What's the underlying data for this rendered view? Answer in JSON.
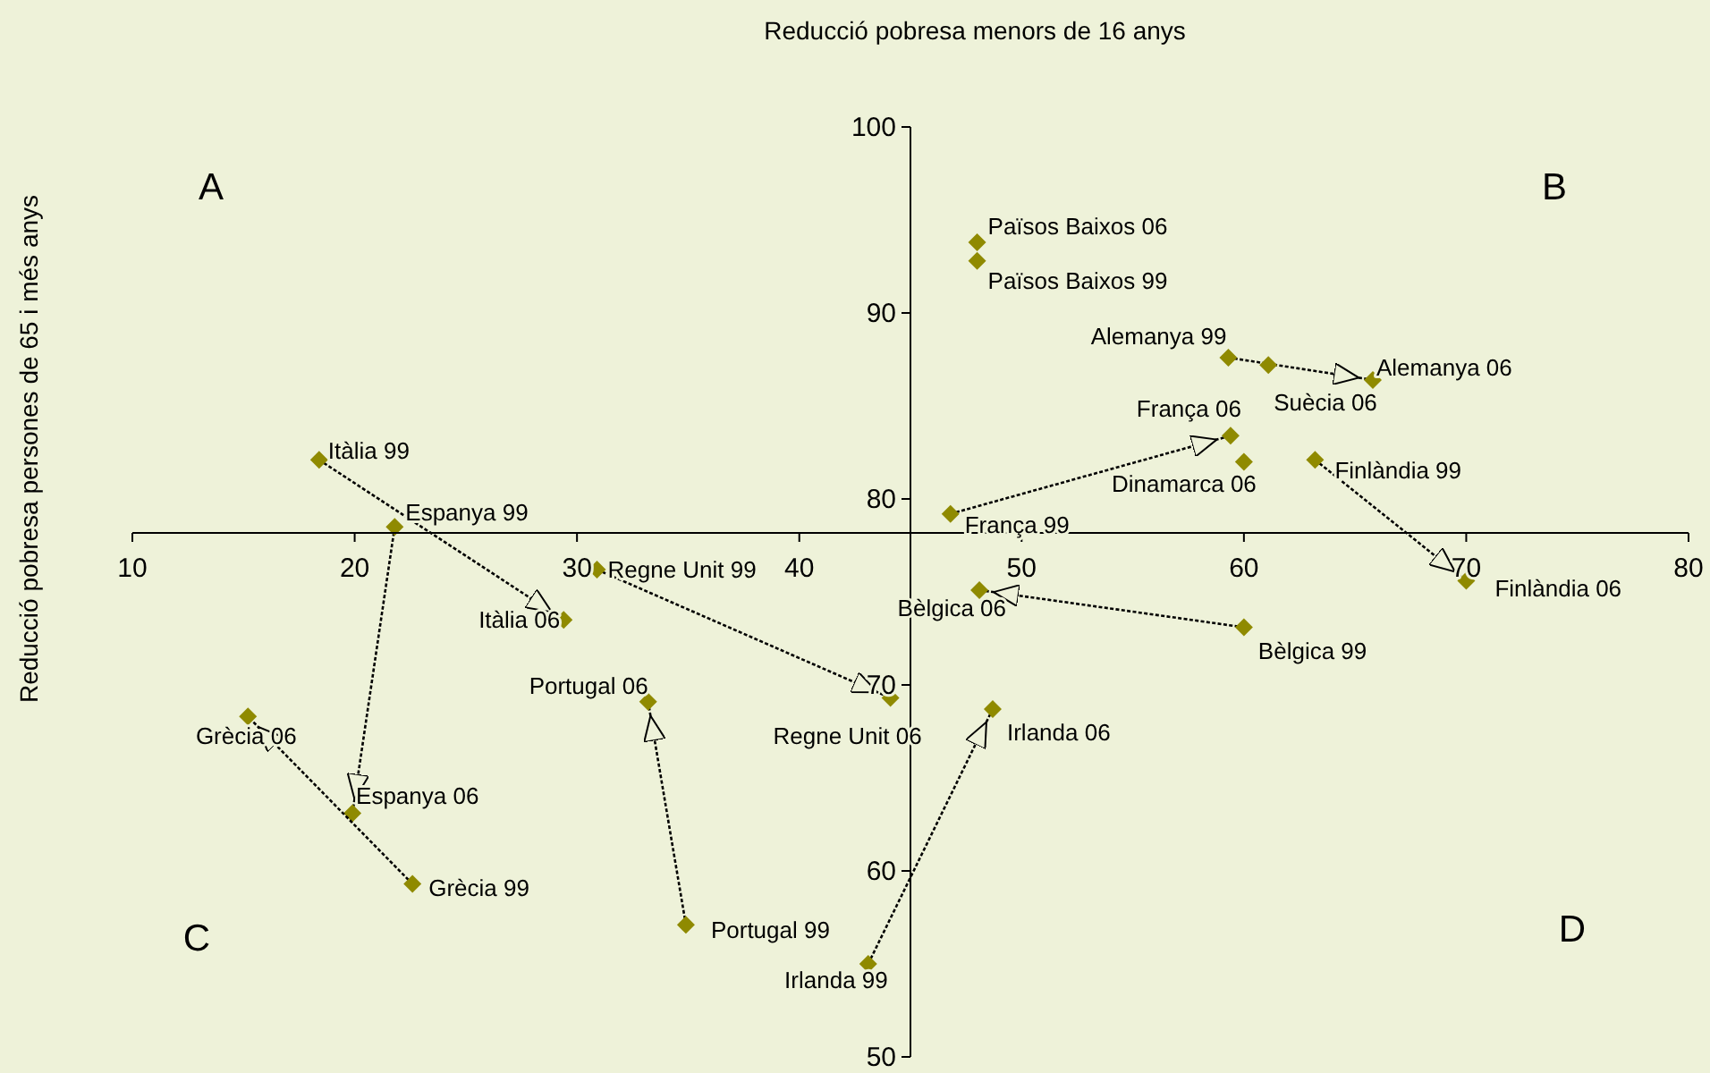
{
  "chart_data": {
    "type": "scatter",
    "xlabel": "Reducció pobresa menors de 16 anys",
    "ylabel": "Reducció pobresa persones de 65 i més anys",
    "xlim": [
      10,
      80
    ],
    "xticks": [
      10,
      20,
      30,
      40,
      50,
      60,
      70,
      80
    ],
    "ylim": [
      50,
      100
    ],
    "yticks": [
      50,
      60,
      70,
      80,
      90,
      100
    ],
    "grid": false,
    "marker": "diamond",
    "series": [
      {
        "type": "line",
        "line_style": "dotted",
        "color": "#8f8a00",
        "x": [
          18.4,
          29.4
        ],
        "values": [
          82.1,
          73.5
        ]
      },
      {
        "type": "line",
        "line_style": "dotted",
        "color": "#8f8a00",
        "x": [
          21.8,
          19.9
        ],
        "values": [
          78.5,
          63.1
        ]
      },
      {
        "type": "line",
        "line_style": "dotted",
        "color": "#8f8a00",
        "x": [
          30.9,
          44.1
        ],
        "values": [
          76.2,
          69.3
        ]
      },
      {
        "type": "line",
        "line_style": "dotted",
        "color": "#8f8a00",
        "x": [
          34.9,
          33.2
        ],
        "values": [
          57.1,
          69.1
        ]
      },
      {
        "type": "line",
        "line_style": "dotted",
        "color": "#8f8a00",
        "x": [
          22.6,
          15.2
        ],
        "values": [
          59.3,
          68.3
        ]
      },
      {
        "type": "line",
        "line_style": "dotted",
        "color": "#8f8a00",
        "x": [
          43.1,
          48.7
        ],
        "values": [
          55.0,
          68.7
        ]
      },
      {
        "type": "line",
        "line_style": "dotted",
        "color": "#8f8a00",
        "x": [
          59.3,
          65.8
        ],
        "values": [
          87.6,
          86.4
        ]
      },
      {
        "type": "line",
        "line_style": "dotted",
        "color": "#8f8a00",
        "x": [
          46.8,
          59.4
        ],
        "values": [
          79.2,
          83.4
        ]
      },
      {
        "type": "line",
        "line_style": "dotted",
        "color": "#8f8a00",
        "x": [
          63.2,
          70.0
        ],
        "values": [
          82.1,
          75.6
        ]
      },
      {
        "type": "line",
        "line_style": "dotted",
        "color": "#8f8a00",
        "x": [
          60.0,
          48.1
        ],
        "values": [
          73.1,
          75.1
        ]
      },
      {
        "color": "#8f8a00",
        "x": [
          48.0,
          48.0,
          61.1,
          60.0
        ],
        "values": [
          93.8,
          92.8,
          87.2,
          82.0
        ]
      }
    ],
    "annotations": [
      "A",
      "B",
      "C",
      "D",
      {
        "text": "Itàlia 99",
        "x": 18.4,
        "y": 82.1
      },
      {
        "text": "Espanya 99",
        "x": 21.8,
        "y": 78.5
      },
      {
        "text": "Itàlia 06",
        "x": 29.4,
        "y": 73.5
      },
      {
        "text": "Regne Unit 99",
        "x": 30.9,
        "y": 76.2
      },
      {
        "text": "Portugal 06",
        "x": 33.2,
        "y": 69.1
      },
      {
        "text": "Regne Unit 06",
        "x": 44.1,
        "y": 69.3
      },
      {
        "text": "Grècia 06",
        "x": 15.2,
        "y": 68.3
      },
      {
        "text": "Espanya 06",
        "x": 19.9,
        "y": 63.1
      },
      {
        "text": "Grècia 99",
        "x": 22.6,
        "y": 59.3
      },
      {
        "text": "Portugal 99",
        "x": 34.9,
        "y": 57.1
      },
      {
        "text": "Irlanda 99",
        "x": 43.1,
        "y": 55.0
      },
      {
        "text": "Països Baixos 06",
        "x": 48.0,
        "y": 93.8
      },
      {
        "text": "Països Baixos 99",
        "x": 48.0,
        "y": 92.8
      },
      {
        "text": "Alemanya 99",
        "x": 59.3,
        "y": 87.6
      },
      {
        "text": "Suècia 06",
        "x": 61.1,
        "y": 87.2
      },
      {
        "text": "Alemanya 06",
        "x": 65.8,
        "y": 86.4
      },
      {
        "text": "França 06",
        "x": 59.4,
        "y": 83.4
      },
      {
        "text": "Dinamarca 06",
        "x": 60.0,
        "y": 82.0
      },
      {
        "text": "Finlàndia 99",
        "x": 63.2,
        "y": 82.1
      },
      {
        "text": "França 99",
        "x": 46.8,
        "y": 79.2
      },
      {
        "text": "Bèlgica 06",
        "x": 48.1,
        "y": 75.1
      },
      {
        "text": "Finlàndia 06",
        "x": 70.0,
        "y": 75.6
      },
      {
        "text": "Bèlgica 99",
        "x": 60.0,
        "y": 73.1
      },
      {
        "text": "Irlanda 06",
        "x": 48.7,
        "y": 68.7
      }
    ]
  }
}
